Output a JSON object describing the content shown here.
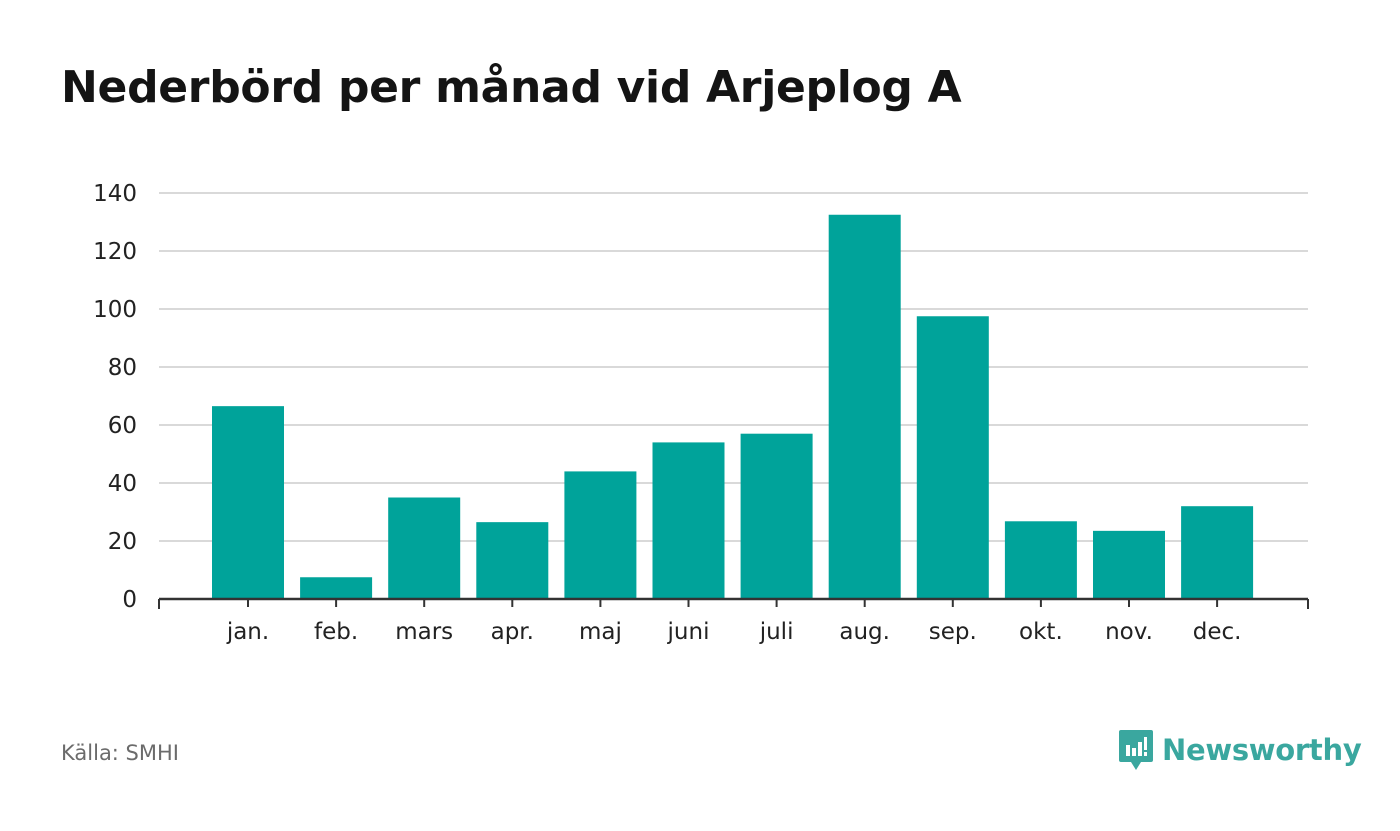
{
  "title": "Nederbörd per månad vid Arjeplog A",
  "source": "Källa: SMHI",
  "brand": {
    "name": "Newsworthy",
    "color": "#3aa79f",
    "icon": "newsworthy-chart-bubble-icon"
  },
  "colors": {
    "bar": "#00a39a",
    "grid": "#d9d9d9",
    "axis": "#333333"
  },
  "chart_data": {
    "type": "bar",
    "title": "Nederbörd per månad vid Arjeplog A",
    "categories": [
      "jan.",
      "feb.",
      "mars",
      "apr.",
      "maj",
      "juni",
      "juli",
      "aug.",
      "sep.",
      "okt.",
      "nov.",
      "dec."
    ],
    "values": [
      66.5,
      7.5,
      35,
      26.5,
      44,
      54,
      57,
      132.5,
      97.5,
      26.8,
      23.5,
      32
    ],
    "xlabel": "",
    "ylabel": "",
    "ylim": [
      0,
      140
    ],
    "yticks": [
      0,
      20,
      40,
      60,
      80,
      100,
      120,
      140
    ],
    "grid": true,
    "legend": "none"
  }
}
